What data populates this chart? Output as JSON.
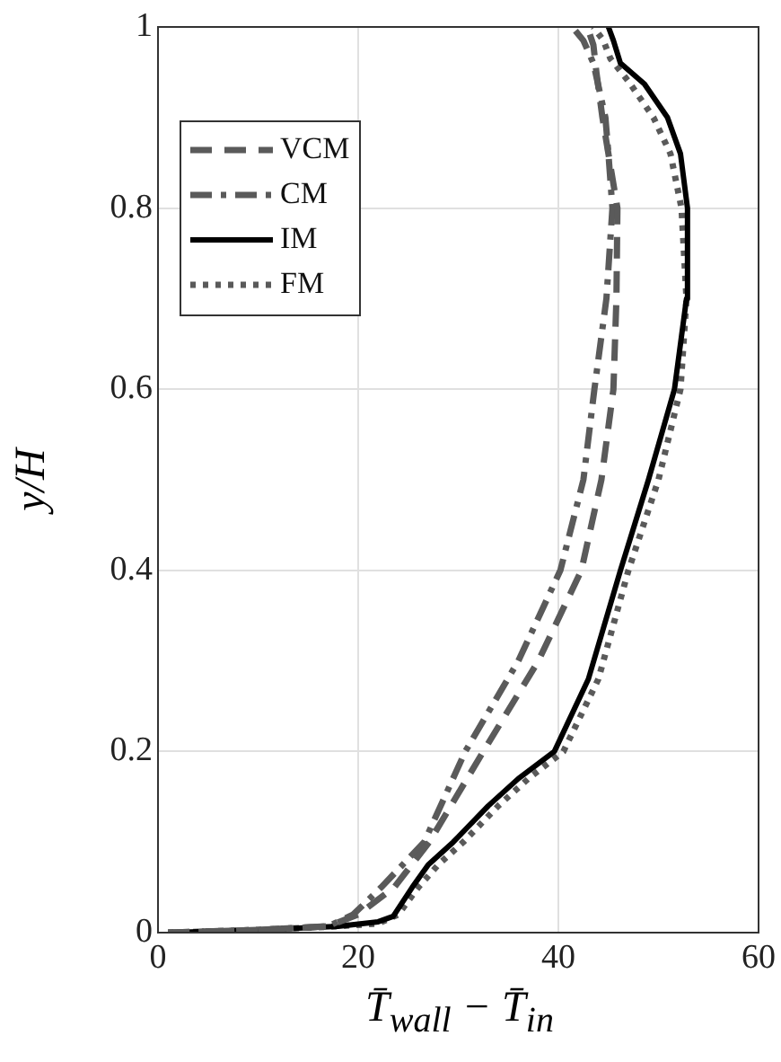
{
  "chart_data": {
    "type": "line",
    "xlabel": "T̄$_{wall}$ − T̄$_{in}$",
    "ylabel": "y/H",
    "xlim": [
      0,
      60
    ],
    "xticks": [
      0,
      20,
      40,
      60
    ],
    "ylim": [
      0,
      1
    ],
    "yticks": [
      0,
      0.2,
      0.4,
      0.6,
      0.8,
      1
    ],
    "grid": true,
    "legend": "top left",
    "marker": "none",
    "series": [
      {
        "name": "VCM",
        "color": "#5a5a5a",
        "line_style": "dashed",
        "x": [
          1,
          10,
          17,
          20,
          23.6,
          27.1,
          32.5,
          38,
          42.3,
          44.3,
          45.5,
          45.8,
          45.9,
          45,
          44.4,
          43.8,
          43.5,
          42.9
        ],
        "values": [
          0,
          0.003,
          0.007,
          0.02,
          0.05,
          0.1,
          0.2,
          0.3,
          0.4,
          0.5,
          0.6,
          0.7,
          0.8,
          0.86,
          0.9,
          0.95,
          0.98,
          1
        ]
      },
      {
        "name": "CM",
        "color": "#5a5a5a",
        "line_style": "dashdot",
        "x": [
          1,
          10,
          17,
          19.5,
          22.3,
          26.6,
          30.7,
          36,
          40.2,
          42.5,
          43.6,
          44.8,
          45.4,
          45,
          44.7,
          43.5,
          42.5,
          41.4
        ],
        "values": [
          0,
          0.003,
          0.007,
          0.02,
          0.05,
          0.1,
          0.2,
          0.3,
          0.4,
          0.5,
          0.6,
          0.7,
          0.8,
          0.86,
          0.9,
          0.96,
          0.985,
          1
        ]
      },
      {
        "name": "IM",
        "color": "#000000",
        "line_style": "solid",
        "x": [
          1,
          10,
          18,
          22,
          23.5,
          25.4,
          27,
          29.5,
          33,
          36,
          39.6,
          43,
          46.2,
          49,
          51.6,
          52.8,
          52.9,
          52.2,
          50.9,
          48.6,
          46.2,
          45.5,
          45
        ],
        "values": [
          0,
          0.003,
          0.007,
          0.012,
          0.018,
          0.05,
          0.075,
          0.1,
          0.14,
          0.17,
          0.2,
          0.28,
          0.4,
          0.5,
          0.6,
          0.7,
          0.8,
          0.86,
          0.9,
          0.937,
          0.96,
          0.985,
          1
        ]
      },
      {
        "name": "FM",
        "color": "#5a5a5a",
        "line_style": "dotted",
        "x": [
          1,
          10,
          18,
          22,
          24,
          26,
          28,
          30.5,
          34,
          37,
          40.5,
          44,
          47,
          50,
          52.2,
          52.8,
          52.3,
          51.2,
          49.5,
          47,
          45.2,
          44.5,
          43.5
        ],
        "values": [
          0,
          0.003,
          0.007,
          0.01,
          0.02,
          0.05,
          0.075,
          0.1,
          0.14,
          0.17,
          0.2,
          0.28,
          0.4,
          0.5,
          0.6,
          0.7,
          0.8,
          0.86,
          0.9,
          0.94,
          0.965,
          0.985,
          1
        ]
      }
    ]
  }
}
